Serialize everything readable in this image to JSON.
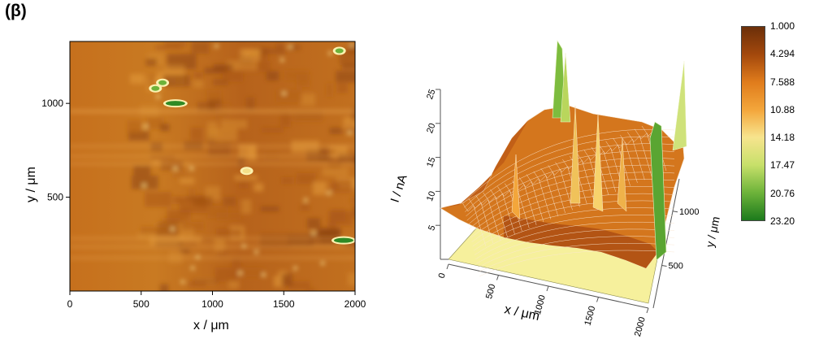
{
  "panel_label": "(β)",
  "chart_data": [
    {
      "type": "heatmap",
      "xlabel": "x / μm",
      "ylabel": "y / μm",
      "x_ticks": [
        "0",
        "500",
        "1000",
        "1500",
        "2000"
      ],
      "y_ticks": [
        "500",
        "1000"
      ],
      "xlim": [
        0,
        2000
      ],
      "ylim": [
        0,
        1330
      ],
      "hotspots": [
        {
          "x": 600,
          "y": 1080,
          "value": 20
        },
        {
          "x": 650,
          "y": 1110,
          "value": 18
        },
        {
          "x": 740,
          "y": 1000,
          "value": 22
        },
        {
          "x": 1240,
          "y": 640,
          "value": 13
        },
        {
          "x": 1890,
          "y": 1280,
          "value": 17
        },
        {
          "x": 1920,
          "y": 270,
          "value": 23
        }
      ]
    },
    {
      "type": "surface",
      "xlabel": "x / μm",
      "ylabel": "y / μm",
      "zlabel": "I / nA",
      "x_ticks": [
        "0",
        "500",
        "1000",
        "1500",
        "2000"
      ],
      "y_ticks": [
        "500",
        "1000"
      ],
      "z_ticks": [
        "5",
        "10",
        "15",
        "20",
        "25"
      ],
      "zlim": [
        0,
        25
      ]
    }
  ],
  "colorbar": {
    "labels": [
      "1.000",
      "4.294",
      "7.588",
      "10.88",
      "14.18",
      "17.47",
      "20.76",
      "23.20"
    ],
    "colors": [
      "#6b2f0a",
      "#a3480c",
      "#e07c1c",
      "#f3a63b",
      "#f7e48e",
      "#c7e06a",
      "#6db33a",
      "#1c7a1c"
    ]
  }
}
